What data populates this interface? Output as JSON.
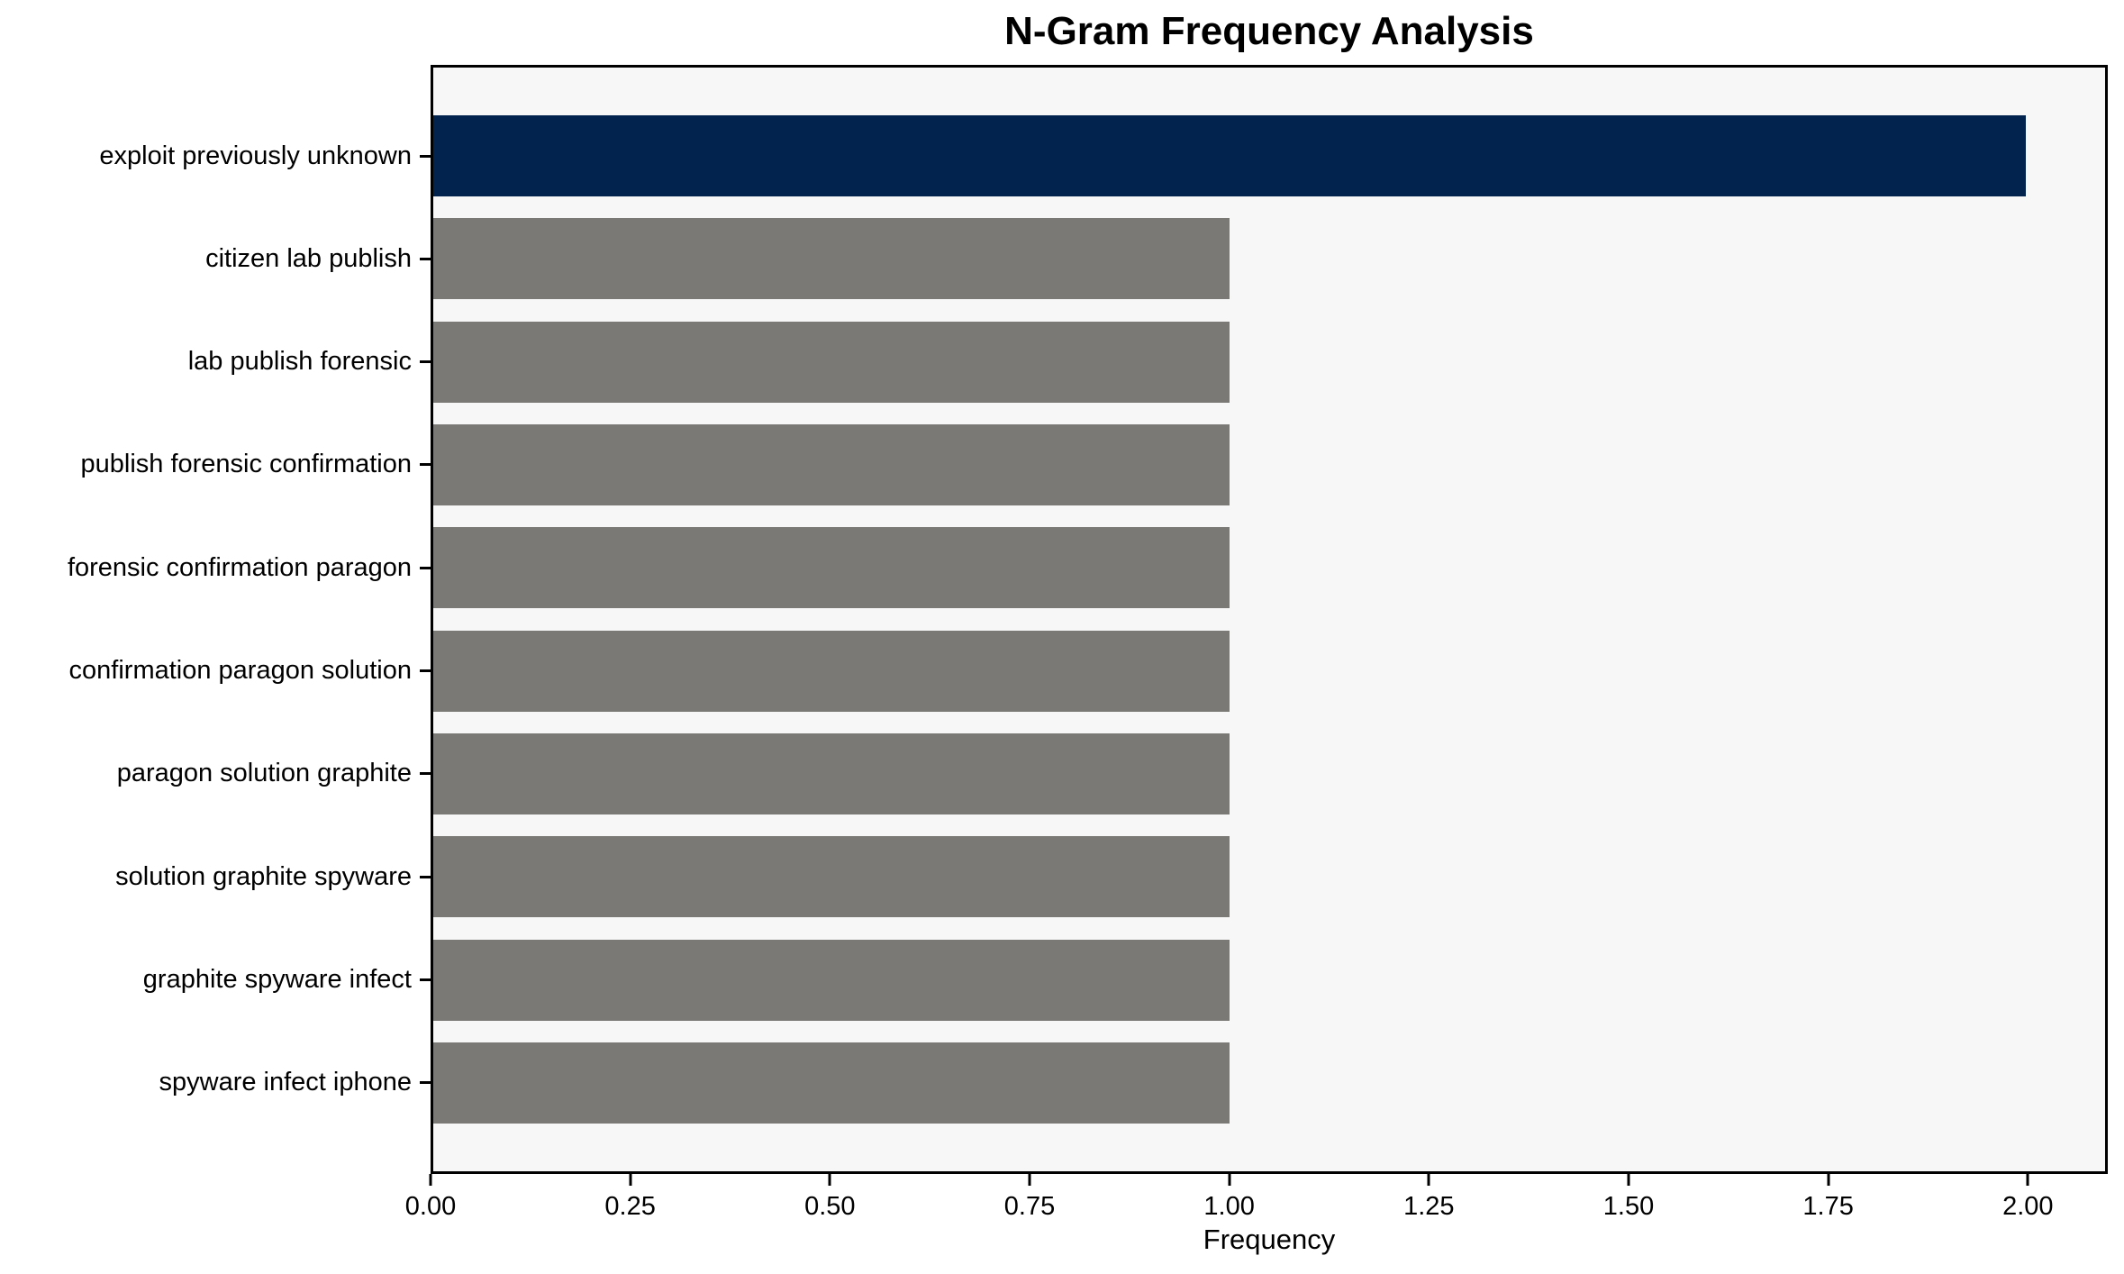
{
  "chart_data": {
    "type": "bar",
    "orientation": "horizontal",
    "title": "N-Gram Frequency Analysis",
    "xlabel": "Frequency",
    "ylabel": "",
    "categories": [
      "exploit previously unknown",
      "citizen lab publish",
      "lab publish forensic",
      "publish forensic confirmation",
      "forensic confirmation paragon",
      "confirmation paragon solution",
      "paragon solution graphite",
      "solution graphite spyware",
      "graphite spyware infect",
      "spyware infect iphone"
    ],
    "values": [
      2.0,
      1.0,
      1.0,
      1.0,
      1.0,
      1.0,
      1.0,
      1.0,
      1.0,
      1.0
    ],
    "bar_colors": [
      "#02234d",
      "#7a7976",
      "#7a7976",
      "#7a7976",
      "#7a7976",
      "#7a7976",
      "#7a7976",
      "#7a7976",
      "#7a7976",
      "#7a7976"
    ],
    "xlim": [
      0,
      2.1
    ],
    "xticks": [
      0,
      0.25,
      0.5,
      0.75,
      1.0,
      1.25,
      1.5,
      1.75,
      2.0
    ],
    "xtick_labels": [
      "0.00",
      "0.25",
      "0.50",
      "0.75",
      "1.00",
      "1.25",
      "1.50",
      "1.75",
      "2.00"
    ],
    "grid": false,
    "legend_position": "none",
    "plot_background": "#f8f7f7",
    "figure_background": "#ffffff",
    "spine_color": "#000000"
  }
}
